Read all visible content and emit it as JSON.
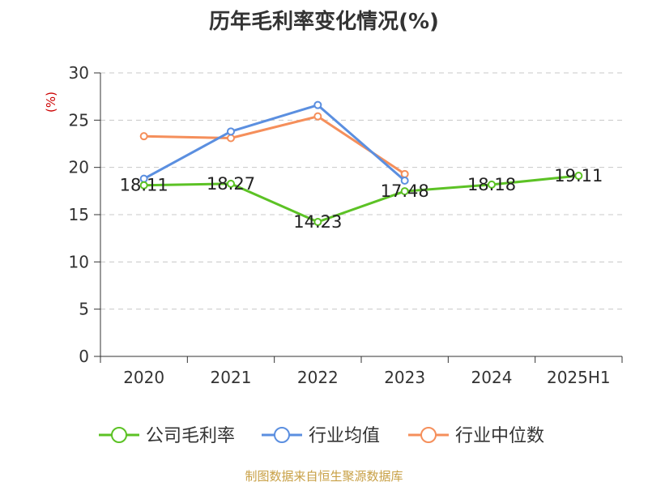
{
  "chart_data": {
    "type": "line",
    "title": "历年毛利率变化情况(%)",
    "ylabel": "(%)",
    "categories": [
      "2020",
      "2021",
      "2022",
      "2023",
      "2024",
      "2025H1"
    ],
    "ylim": [
      0,
      30
    ],
    "yticks": [
      0,
      5,
      10,
      15,
      20,
      25,
      30
    ],
    "grid": true,
    "legend_position": "bottom",
    "series": [
      {
        "name": "公司毛利率",
        "color": "#5cc225",
        "values": [
          18.11,
          18.27,
          14.23,
          17.48,
          18.18,
          19.11
        ],
        "labels": [
          "18.11",
          "18.27",
          "14.23",
          "17.48",
          "18.18",
          "19.11"
        ]
      },
      {
        "name": "行业均值",
        "color": "#5b8fe0",
        "values": [
          18.8,
          23.8,
          26.6,
          18.6,
          null,
          null
        ]
      },
      {
        "name": "行业中位数",
        "color": "#f58f5b",
        "values": [
          23.3,
          23.1,
          25.4,
          19.3,
          null,
          null
        ]
      }
    ]
  },
  "source": "制图数据来自恒生聚源数据库"
}
